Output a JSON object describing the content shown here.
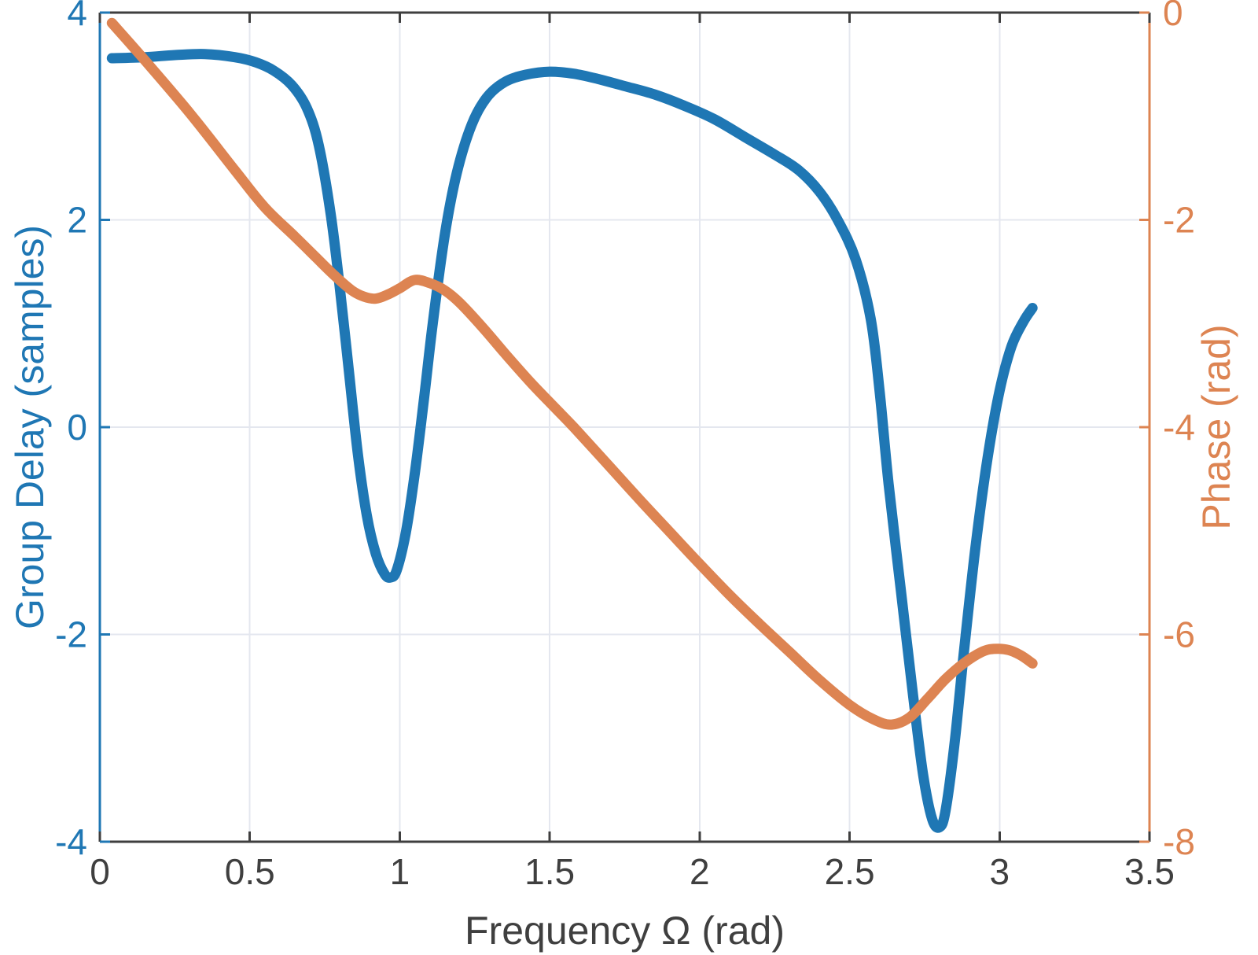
{
  "figure": {
    "background": "#ffffff",
    "axes_color": "#3f3f3f",
    "grid_color": "#e4e7ef"
  },
  "chart_data": {
    "type": "line",
    "title": "",
    "xlabel": "Frequency Ω (rad)",
    "x_range": [
      0,
      3.5
    ],
    "x_ticks": [
      0,
      0.5,
      1,
      1.5,
      2,
      2.5,
      3,
      3.5
    ],
    "x_tick_labels": [
      "0",
      "0.5",
      "1",
      "1.5",
      "2",
      "2.5",
      "3",
      "3.5"
    ],
    "grid": true,
    "legend": "none",
    "left_axis": {
      "label": "Group Delay (samples)",
      "color": "#1f77b4",
      "range": [
        -4,
        4
      ],
      "ticks": [
        4,
        2,
        0,
        -2,
        -4
      ],
      "tick_labels": [
        "4",
        "2",
        "0",
        "-2",
        "-4"
      ]
    },
    "right_axis": {
      "label": "Phase (rad)",
      "color": "#dd8452",
      "range": [
        -8,
        0
      ],
      "ticks": [
        0,
        -2,
        -4,
        -6,
        -8
      ],
      "tick_labels": [
        "0",
        "-2",
        "-4",
        "-6",
        "-8"
      ]
    },
    "series": [
      {
        "name": "group-delay",
        "axis": "left",
        "color": "#1f77b4",
        "line_width": 13,
        "x": [
          0.04,
          0.15,
          0.25,
          0.35,
          0.45,
          0.52,
          0.58,
          0.64,
          0.69,
          0.73,
          0.77,
          0.8,
          0.83,
          0.86,
          0.89,
          0.92,
          0.95,
          0.97,
          0.99,
          1.02,
          1.05,
          1.08,
          1.11,
          1.15,
          1.19,
          1.24,
          1.29,
          1.35,
          1.42,
          1.5,
          1.58,
          1.66,
          1.75,
          1.85,
          1.95,
          2.05,
          2.15,
          2.25,
          2.33,
          2.4,
          2.46,
          2.52,
          2.57,
          2.6,
          2.63,
          2.67,
          2.71,
          2.745,
          2.775,
          2.8,
          2.82,
          2.85,
          2.88,
          2.92,
          2.96,
          3.0,
          3.04,
          3.08,
          3.11
        ],
        "y": [
          3.56,
          3.57,
          3.59,
          3.6,
          3.57,
          3.52,
          3.44,
          3.3,
          3.08,
          2.72,
          2.05,
          1.35,
          0.55,
          -0.25,
          -0.85,
          -1.22,
          -1.42,
          -1.45,
          -1.38,
          -1.02,
          -0.45,
          0.25,
          1.0,
          1.85,
          2.45,
          2.92,
          3.18,
          3.33,
          3.4,
          3.43,
          3.41,
          3.36,
          3.29,
          3.21,
          3.1,
          2.97,
          2.8,
          2.63,
          2.48,
          2.27,
          2.0,
          1.62,
          1.05,
          0.35,
          -0.55,
          -1.55,
          -2.55,
          -3.35,
          -3.78,
          -3.86,
          -3.7,
          -3.05,
          -2.2,
          -1.15,
          -0.3,
          0.35,
          0.78,
          1.02,
          1.15
        ]
      },
      {
        "name": "phase",
        "axis": "right",
        "color": "#dd8452",
        "line_width": 13,
        "x": [
          0.04,
          0.15,
          0.3,
          0.45,
          0.55,
          0.65,
          0.72,
          0.78,
          0.84,
          0.88,
          0.92,
          0.96,
          1.0,
          1.05,
          1.1,
          1.15,
          1.2,
          1.28,
          1.36,
          1.44,
          1.52,
          1.58,
          1.7,
          1.8,
          1.9,
          2.0,
          2.1,
          2.2,
          2.3,
          2.4,
          2.5,
          2.58,
          2.64,
          2.7,
          2.76,
          2.82,
          2.88,
          2.94,
          2.98,
          3.03,
          3.07,
          3.11
        ],
        "y": [
          -0.1,
          -0.46,
          -0.97,
          -1.52,
          -1.88,
          -2.16,
          -2.36,
          -2.53,
          -2.68,
          -2.74,
          -2.76,
          -2.72,
          -2.66,
          -2.58,
          -2.61,
          -2.68,
          -2.8,
          -3.05,
          -3.32,
          -3.58,
          -3.82,
          -4.0,
          -4.38,
          -4.7,
          -5.01,
          -5.32,
          -5.62,
          -5.9,
          -6.17,
          -6.44,
          -6.68,
          -6.82,
          -6.87,
          -6.8,
          -6.62,
          -6.43,
          -6.28,
          -6.17,
          -6.14,
          -6.15,
          -6.2,
          -6.28
        ]
      }
    ]
  }
}
